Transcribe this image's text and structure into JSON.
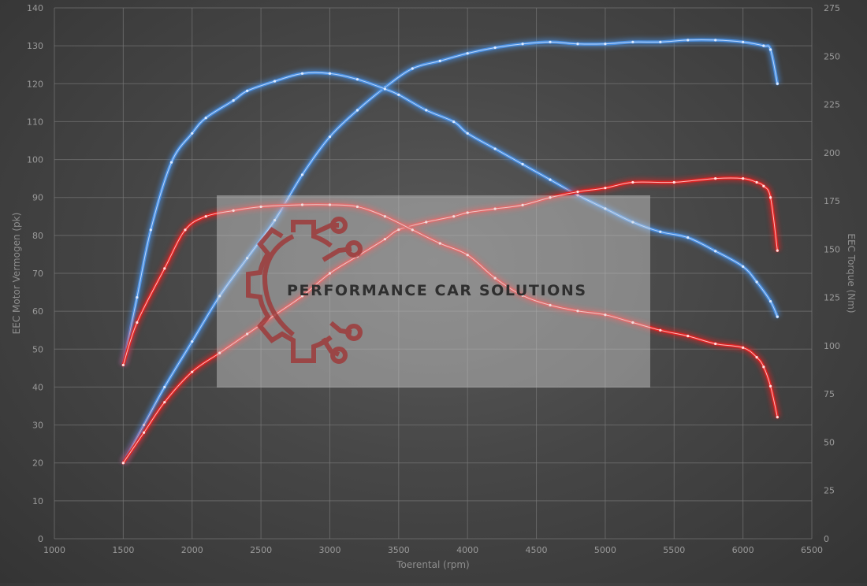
{
  "chart_data": {
    "type": "line",
    "xlabel": "Toerental (rpm)",
    "ylabel_left": "EEC Motor Vermogen (pk)",
    "ylabel_right": "EEC Torque (Nm)",
    "xlim": [
      1000,
      6500
    ],
    "ylim_left": [
      0,
      140
    ],
    "ylim_right": [
      0,
      275
    ],
    "x_ticks": [
      "1000",
      "1500",
      "2000",
      "2500",
      "3000",
      "3500",
      "4000",
      "4500",
      "5000",
      "5500",
      "6000",
      "6500"
    ],
    "y_left_ticks": [
      "0",
      "10",
      "20",
      "30",
      "40",
      "50",
      "60",
      "70",
      "80",
      "90",
      "100",
      "110",
      "120",
      "130",
      "140"
    ],
    "y_right_ticks": [
      "0",
      "25",
      "50",
      "75",
      "100",
      "125",
      "150",
      "175",
      "200",
      "225",
      "250",
      "275"
    ],
    "grid": true,
    "series": [
      {
        "role": "tuned power",
        "axis": "left",
        "color": "#4a8fe0",
        "points": [
          [
            1500,
            20
          ],
          [
            1650,
            30
          ],
          [
            1800,
            40
          ],
          [
            2000,
            52
          ],
          [
            2200,
            64
          ],
          [
            2400,
            74
          ],
          [
            2600,
            84
          ],
          [
            2800,
            96
          ],
          [
            3000,
            106
          ],
          [
            3200,
            113
          ],
          [
            3400,
            119
          ],
          [
            3600,
            124
          ],
          [
            3800,
            126
          ],
          [
            4000,
            128
          ],
          [
            4200,
            129.5
          ],
          [
            4400,
            130.5
          ],
          [
            4600,
            131
          ],
          [
            4800,
            130.5
          ],
          [
            5000,
            130.5
          ],
          [
            5200,
            131
          ],
          [
            5400,
            131
          ],
          [
            5600,
            131.5
          ],
          [
            5800,
            131.5
          ],
          [
            6000,
            131
          ],
          [
            6150,
            130
          ],
          [
            6200,
            129
          ],
          [
            6250,
            120
          ]
        ]
      },
      {
        "role": "tuned torque",
        "axis": "right",
        "color": "#4a8fe0",
        "points": [
          [
            1500,
            90
          ],
          [
            1600,
            125
          ],
          [
            1700,
            160
          ],
          [
            1850,
            195
          ],
          [
            2000,
            210
          ],
          [
            2100,
            218
          ],
          [
            2300,
            227
          ],
          [
            2400,
            232
          ],
          [
            2600,
            237
          ],
          [
            2800,
            241
          ],
          [
            3000,
            241
          ],
          [
            3200,
            238
          ],
          [
            3400,
            233
          ],
          [
            3500,
            230
          ],
          [
            3700,
            222
          ],
          [
            3900,
            216
          ],
          [
            4000,
            210
          ],
          [
            4200,
            202
          ],
          [
            4400,
            194
          ],
          [
            4600,
            186
          ],
          [
            4800,
            178
          ],
          [
            5000,
            171
          ],
          [
            5200,
            164
          ],
          [
            5400,
            159
          ],
          [
            5600,
            156
          ],
          [
            5800,
            149
          ],
          [
            6000,
            141
          ],
          [
            6100,
            133
          ],
          [
            6200,
            123
          ],
          [
            6250,
            115
          ]
        ]
      },
      {
        "role": "stock power",
        "axis": "left",
        "color": "#e02424",
        "points": [
          [
            1500,
            20
          ],
          [
            1650,
            28
          ],
          [
            1800,
            36
          ],
          [
            2000,
            44
          ],
          [
            2200,
            49
          ],
          [
            2400,
            54
          ],
          [
            2600,
            59
          ],
          [
            2800,
            64
          ],
          [
            3000,
            70
          ],
          [
            3200,
            74.5
          ],
          [
            3400,
            79
          ],
          [
            3500,
            81.5
          ],
          [
            3700,
            83.5
          ],
          [
            3900,
            85
          ],
          [
            4000,
            86
          ],
          [
            4200,
            87
          ],
          [
            4400,
            88
          ],
          [
            4600,
            90
          ],
          [
            4800,
            91.5
          ],
          [
            5000,
            92.5
          ],
          [
            5200,
            94
          ],
          [
            5500,
            94
          ],
          [
            5800,
            95
          ],
          [
            6000,
            95
          ],
          [
            6100,
            94
          ],
          [
            6150,
            93
          ],
          [
            6200,
            90
          ],
          [
            6250,
            76
          ]
        ]
      },
      {
        "role": "stock torque",
        "axis": "right",
        "color": "#e02424",
        "points": [
          [
            1500,
            90
          ],
          [
            1600,
            112
          ],
          [
            1800,
            140
          ],
          [
            1950,
            160
          ],
          [
            2100,
            167
          ],
          [
            2300,
            170
          ],
          [
            2500,
            172
          ],
          [
            2800,
            173
          ],
          [
            3000,
            173
          ],
          [
            3200,
            172
          ],
          [
            3400,
            167
          ],
          [
            3600,
            160
          ],
          [
            3800,
            153
          ],
          [
            4000,
            147
          ],
          [
            4200,
            135
          ],
          [
            4400,
            126
          ],
          [
            4600,
            121
          ],
          [
            4800,
            118
          ],
          [
            5000,
            116
          ],
          [
            5200,
            112
          ],
          [
            5400,
            108
          ],
          [
            5600,
            105
          ],
          [
            5800,
            101
          ],
          [
            6000,
            99
          ],
          [
            6100,
            94
          ],
          [
            6150,
            89
          ],
          [
            6200,
            79
          ],
          [
            6250,
            63
          ]
        ]
      }
    ],
    "watermark": "PERFORMANCE CAR SOLUTIONS"
  }
}
